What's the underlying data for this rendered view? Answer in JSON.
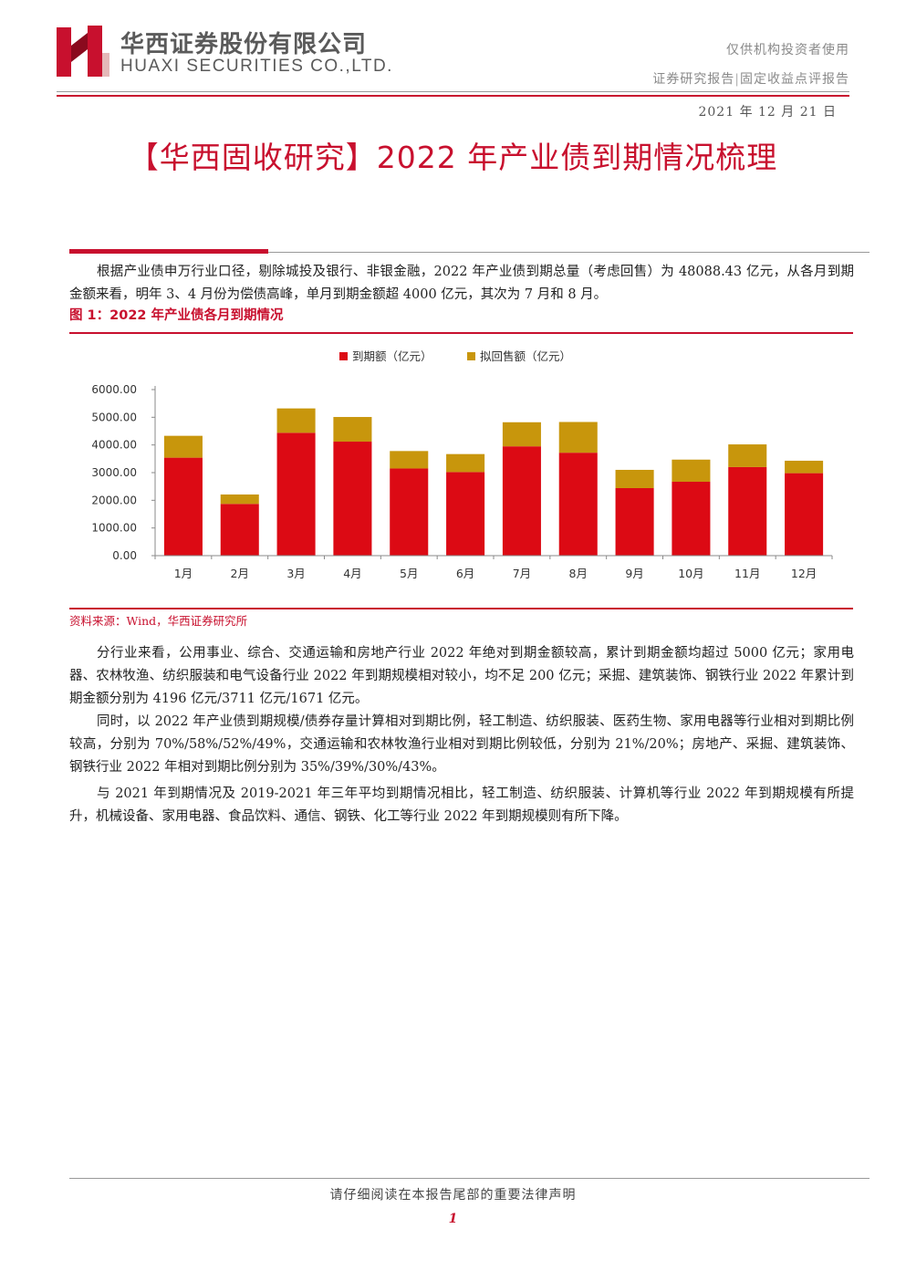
{
  "header": {
    "company_cn": "华西证券股份有限公司",
    "company_en": "HUAXI SECURITIES CO.,LTD.",
    "audience": "仅供机构投资者使用",
    "report_type": "证券研究报告",
    "report_subtype": "固定收益点评报告",
    "date": "2021 年 12 月 21 日",
    "colors": {
      "brand_red": "#c8102e",
      "gold": "#c8960c"
    }
  },
  "title": "【华西固收研究】2022 年产业债到期情况梳理",
  "intro": "根据产业债申万行业口径，剔除城投及银行、非银金融，2022 年产业债到期总量（考虑回售）为 48088.43 亿元，从各月到期金额来看，明年 3、4 月份为偿债高峰，单月到期金额超 4000 亿元，其次为 7 月和 8 月。",
  "figure": {
    "title": "图 1：2022 年产业债各月到期情况",
    "source": "资料来源：Wind，华西证券研究所"
  },
  "chart_data": {
    "type": "bar",
    "stacked": true,
    "categories": [
      "1月",
      "2月",
      "3月",
      "4月",
      "5月",
      "6月",
      "7月",
      "8月",
      "9月",
      "10月",
      "11月",
      "12月"
    ],
    "series": [
      {
        "name": "到期额（亿元）",
        "color": "#dc0a14",
        "values": [
          3540,
          1870,
          4440,
          4120,
          3150,
          3020,
          3950,
          3720,
          2440,
          2670,
          3200,
          2980
        ]
      },
      {
        "name": "拟回售额（亿元）",
        "color": "#c8960c",
        "values": [
          790,
          340,
          880,
          890,
          630,
          650,
          870,
          1110,
          660,
          800,
          820,
          450
        ]
      }
    ],
    "yticks": [
      "0.00",
      "1000.00",
      "2000.00",
      "3000.00",
      "4000.00",
      "5000.00",
      "6000.00"
    ],
    "ylim": [
      0,
      6000
    ],
    "legend_position": "top-center",
    "grid": false
  },
  "paragraphs": [
    "分行业来看，公用事业、综合、交通运输和房地产行业 2022 年绝对到期金额较高，累计到期金额均超过 5000 亿元；家用电器、农林牧渔、纺织服装和电气设备行业 2022 年到期规模相对较小，均不足 200 亿元；采掘、建筑装饰、钢铁行业 2022 年累计到期金额分别为 4196 亿元/3711 亿元/1671 亿元。",
    "同时，以 2022 年产业债到期规模/债券存量计算相对到期比例，轻工制造、纺织服装、医药生物、家用电器等行业相对到期比例较高，分别为 70%/58%/52%/49%，交通运输和农林牧渔行业相对到期比例较低，分别为 21%/20%；房地产、采掘、建筑装饰、钢铁行业 2022 年相对到期比例分别为 35%/39%/30%/43%。",
    "与 2021 年到期情况及 2019-2021 年三年平均到期情况相比，轻工制造、纺织服装、计算机等行业 2022 年到期规模有所提升，机械设备、家用电器、食品饮料、通信、钢铁、化工等行业 2022 年到期规模则有所下降。"
  ],
  "footer": {
    "disclaimer": "请仔细阅读在本报告尾部的重要法律声明",
    "page": "1"
  }
}
